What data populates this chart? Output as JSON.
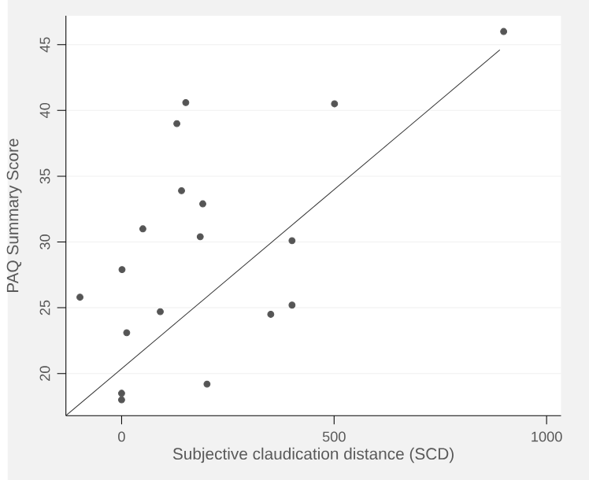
{
  "chart_data": {
    "type": "scatter",
    "xlabel": "Subjective claudication distance (SCD)",
    "ylabel": "PAQ Summary Score",
    "xlim": [
      -131,
      1034
    ],
    "ylim": [
      16.8,
      47.2
    ],
    "xticks": [
      0,
      500,
      1000
    ],
    "yticks": [
      20,
      25,
      30,
      35,
      40,
      45
    ],
    "grid": "y",
    "series": [
      {
        "color": "#555555",
        "marker": "circle",
        "x": [
          899,
          151,
          501,
          130,
          141,
          191,
          50,
          185,
          401,
          1,
          -98,
          91,
          351,
          401,
          12,
          201,
          0,
          0
        ],
        "values": [
          46.0,
          40.6,
          40.5,
          39.0,
          33.9,
          32.9,
          31.0,
          30.4,
          30.1,
          27.9,
          25.8,
          24.7,
          24.5,
          25.2,
          23.1,
          19.2,
          18.5,
          18.0
        ]
      },
      {
        "type": "line",
        "color": "#333333",
        "marker": "none",
        "x": [
          -131,
          890
        ],
        "values": [
          16.8,
          44.6
        ]
      }
    ]
  }
}
